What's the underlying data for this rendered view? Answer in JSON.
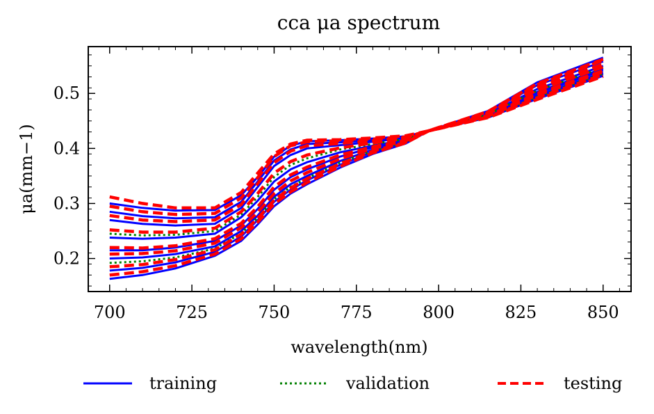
{
  "chart_data": {
    "type": "line",
    "title": "cca μa spectrum",
    "xlabel": "wavelength(nm)",
    "ylabel": "μa(mm−1)",
    "xlim": [
      693.5,
      858.5
    ],
    "ylim": [
      0.14,
      0.585
    ],
    "xticks": [
      700,
      725,
      750,
      775,
      800,
      825,
      850
    ],
    "yticks": [
      0.2,
      0.3,
      0.4,
      0.5
    ],
    "ytick_labels": [
      "0.2",
      "0.3",
      "0.4",
      "0.5"
    ],
    "colors": {
      "training": "#0000ff",
      "validation": "#008000",
      "testing": "#ff0000"
    },
    "legend": [
      {
        "key": "training",
        "label": "training",
        "style": "solid"
      },
      {
        "key": "validation",
        "label": "validation",
        "style": "dotted"
      },
      {
        "key": "testing",
        "label": "testing",
        "style": "dashed"
      }
    ],
    "legend_position": "bottom",
    "x": [
      700,
      710,
      720,
      732,
      740,
      745,
      750,
      755,
      760,
      770,
      780,
      790,
      797,
      800,
      815,
      830,
      850
    ],
    "series": [
      {
        "group": "training",
        "values": [
          0.3,
          0.292,
          0.287,
          0.288,
          0.315,
          0.348,
          0.385,
          0.405,
          0.413,
          0.415,
          0.418,
          0.422,
          0.432,
          0.438,
          0.468,
          0.52,
          0.565
        ]
      },
      {
        "group": "training",
        "values": [
          0.285,
          0.277,
          0.273,
          0.275,
          0.303,
          0.34,
          0.378,
          0.398,
          0.408,
          0.411,
          0.415,
          0.42,
          0.432,
          0.438,
          0.466,
          0.515,
          0.558
        ]
      },
      {
        "group": "training",
        "values": [
          0.27,
          0.263,
          0.26,
          0.263,
          0.292,
          0.33,
          0.368,
          0.388,
          0.4,
          0.406,
          0.412,
          0.419,
          0.432,
          0.437,
          0.463,
          0.508,
          0.55
        ]
      },
      {
        "group": "training",
        "values": [
          0.238,
          0.236,
          0.238,
          0.245,
          0.275,
          0.305,
          0.34,
          0.362,
          0.375,
          0.393,
          0.405,
          0.416,
          0.432,
          0.437,
          0.462,
          0.503,
          0.545
        ]
      },
      {
        "group": "training",
        "values": [
          0.215,
          0.215,
          0.22,
          0.232,
          0.26,
          0.29,
          0.325,
          0.348,
          0.362,
          0.385,
          0.402,
          0.415,
          0.432,
          0.437,
          0.46,
          0.5,
          0.542
        ]
      },
      {
        "group": "training",
        "values": [
          0.2,
          0.202,
          0.208,
          0.222,
          0.25,
          0.278,
          0.312,
          0.335,
          0.35,
          0.377,
          0.398,
          0.413,
          0.432,
          0.436,
          0.458,
          0.496,
          0.538
        ]
      },
      {
        "group": "training",
        "values": [
          0.178,
          0.183,
          0.193,
          0.212,
          0.24,
          0.27,
          0.303,
          0.325,
          0.342,
          0.37,
          0.394,
          0.411,
          0.432,
          0.436,
          0.457,
          0.493,
          0.535
        ]
      },
      {
        "group": "training",
        "values": [
          0.163,
          0.17,
          0.182,
          0.205,
          0.232,
          0.262,
          0.295,
          0.318,
          0.335,
          0.365,
          0.39,
          0.409,
          0.432,
          0.436,
          0.456,
          0.49,
          0.532
        ]
      },
      {
        "group": "validation",
        "values": [
          0.245,
          0.242,
          0.243,
          0.25,
          0.28,
          0.312,
          0.348,
          0.37,
          0.382,
          0.398,
          0.408,
          0.417,
          0.432,
          0.437,
          0.462,
          0.505,
          0.547
        ]
      },
      {
        "group": "validation",
        "values": [
          0.192,
          0.195,
          0.202,
          0.218,
          0.246,
          0.274,
          0.308,
          0.33,
          0.346,
          0.374,
          0.396,
          0.412,
          0.432,
          0.436,
          0.457,
          0.494,
          0.536
        ]
      },
      {
        "group": "testing",
        "values": [
          0.312,
          0.3,
          0.292,
          0.292,
          0.32,
          0.355,
          0.39,
          0.408,
          0.415,
          0.416,
          0.419,
          0.423,
          0.432,
          0.438,
          0.467,
          0.518,
          0.562
        ]
      },
      {
        "group": "testing",
        "values": [
          0.295,
          0.285,
          0.28,
          0.282,
          0.31,
          0.347,
          0.385,
          0.405,
          0.412,
          0.414,
          0.417,
          0.421,
          0.432,
          0.438,
          0.466,
          0.516,
          0.56
        ]
      },
      {
        "group": "testing",
        "values": [
          0.278,
          0.27,
          0.267,
          0.27,
          0.298,
          0.336,
          0.374,
          0.395,
          0.405,
          0.409,
          0.414,
          0.42,
          0.432,
          0.437,
          0.464,
          0.511,
          0.553
        ]
      },
      {
        "group": "testing",
        "values": [
          0.252,
          0.248,
          0.248,
          0.255,
          0.285,
          0.318,
          0.355,
          0.376,
          0.388,
          0.401,
          0.41,
          0.418,
          0.432,
          0.437,
          0.463,
          0.506,
          0.548
        ]
      },
      {
        "group": "testing",
        "values": [
          0.22,
          0.219,
          0.223,
          0.236,
          0.264,
          0.294,
          0.33,
          0.352,
          0.366,
          0.388,
          0.403,
          0.415,
          0.432,
          0.437,
          0.46,
          0.5,
          0.541
        ]
      },
      {
        "group": "testing",
        "values": [
          0.208,
          0.209,
          0.214,
          0.228,
          0.256,
          0.284,
          0.318,
          0.341,
          0.356,
          0.381,
          0.4,
          0.414,
          0.432,
          0.436,
          0.459,
          0.497,
          0.539
        ]
      },
      {
        "group": "testing",
        "values": [
          0.185,
          0.189,
          0.198,
          0.216,
          0.244,
          0.273,
          0.306,
          0.328,
          0.345,
          0.372,
          0.395,
          0.411,
          0.432,
          0.436,
          0.457,
          0.492,
          0.534
        ]
      },
      {
        "group": "testing",
        "values": [
          0.17,
          0.176,
          0.187,
          0.208,
          0.236,
          0.266,
          0.299,
          0.321,
          0.338,
          0.367,
          0.392,
          0.41,
          0.432,
          0.436,
          0.456,
          0.489,
          0.531
        ]
      }
    ]
  }
}
